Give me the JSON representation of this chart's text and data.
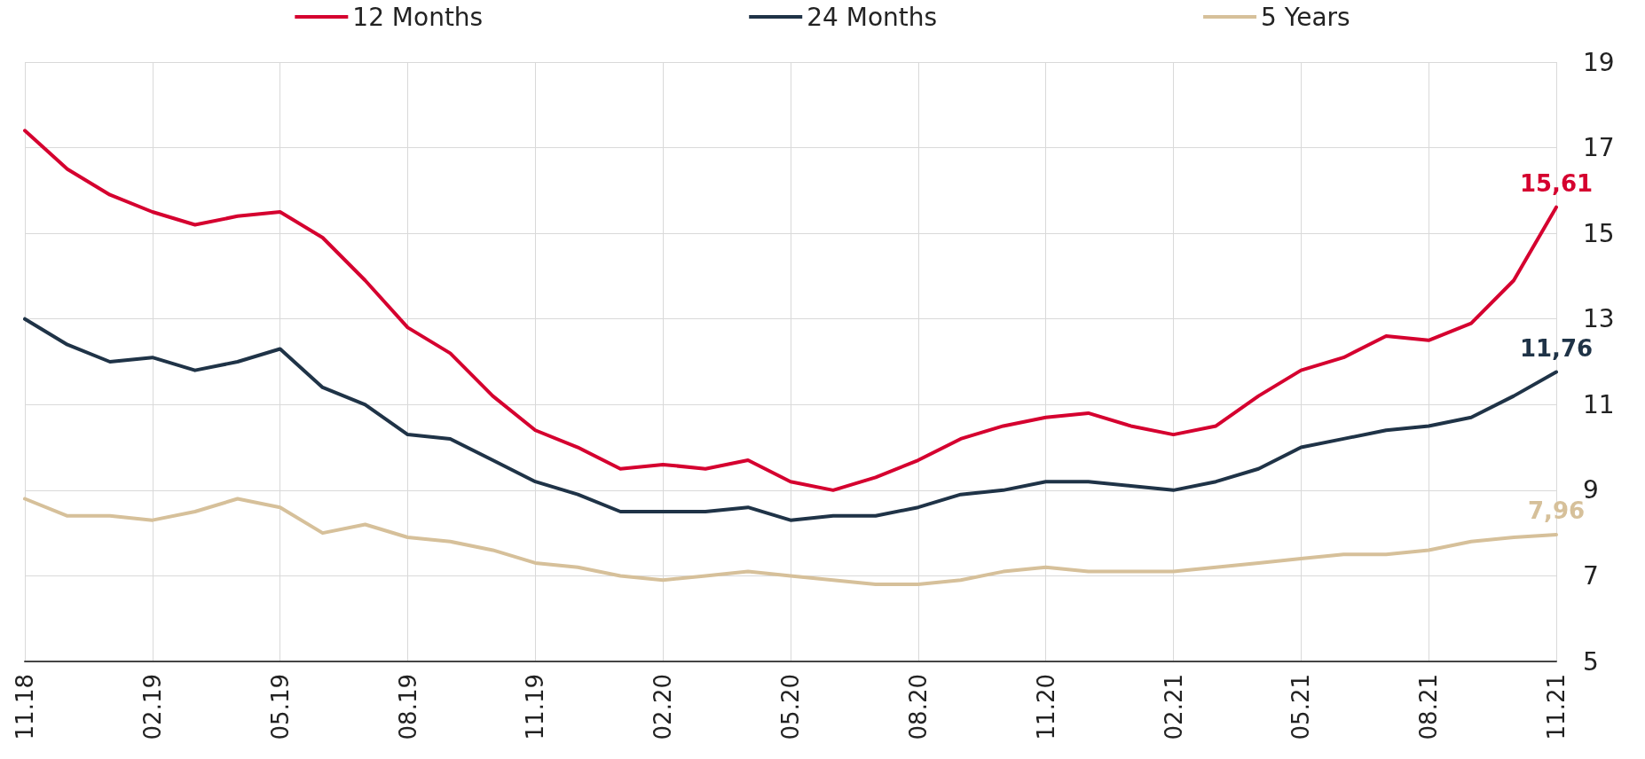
{
  "chart_data": {
    "type": "line",
    "categories": [
      "11.18",
      null,
      null,
      "02.19",
      null,
      null,
      "05.19",
      null,
      null,
      "08.19",
      null,
      null,
      "11.19",
      null,
      null,
      "02.20",
      null,
      null,
      "05.20",
      null,
      null,
      "08.20",
      null,
      null,
      "11.20",
      null,
      null,
      "02.21",
      null,
      null,
      "05.21",
      null,
      null,
      "08.21",
      null,
      null,
      "11.21"
    ],
    "series": [
      {
        "name": "12 Months",
        "color": "#d5002f",
        "values": [
          17.4,
          16.5,
          15.9,
          15.5,
          15.2,
          15.4,
          15.5,
          14.9,
          13.9,
          12.8,
          12.2,
          11.2,
          10.4,
          10.0,
          9.5,
          9.6,
          9.5,
          9.7,
          9.2,
          9.0,
          9.3,
          9.7,
          10.2,
          10.5,
          10.7,
          10.8,
          10.5,
          10.3,
          10.5,
          11.2,
          11.8,
          12.1,
          12.6,
          12.5,
          12.9,
          13.9,
          15.61
        ],
        "value_labels": [
          null,
          null,
          null,
          null,
          null,
          null,
          null,
          null,
          null,
          null,
          null,
          null,
          null,
          null,
          null,
          null,
          null,
          null,
          null,
          null,
          null,
          null,
          null,
          null,
          null,
          null,
          null,
          null,
          null,
          null,
          null,
          null,
          null,
          null,
          null,
          null,
          "15,61"
        ]
      },
      {
        "name": "24 Months",
        "color": "#1f3347",
        "values": [
          13.0,
          12.4,
          12.0,
          12.1,
          11.8,
          12.0,
          12.3,
          11.4,
          11.0,
          10.3,
          10.2,
          9.7,
          9.2,
          8.9,
          8.5,
          8.5,
          8.5,
          8.6,
          8.3,
          8.4,
          8.4,
          8.6,
          8.9,
          9.0,
          9.2,
          9.2,
          9.1,
          9.0,
          9.2,
          9.5,
          10.0,
          10.2,
          10.4,
          10.5,
          10.7,
          11.2,
          11.76
        ],
        "value_labels": [
          null,
          null,
          null,
          null,
          null,
          null,
          null,
          null,
          null,
          null,
          null,
          null,
          null,
          null,
          null,
          null,
          null,
          null,
          null,
          null,
          null,
          null,
          null,
          null,
          null,
          null,
          null,
          null,
          null,
          null,
          null,
          null,
          null,
          null,
          null,
          null,
          "11,76"
        ]
      },
      {
        "name": "5 Years",
        "color": "#d6c09a",
        "values": [
          8.8,
          8.4,
          8.4,
          8.3,
          8.5,
          8.8,
          8.6,
          8.0,
          8.2,
          7.9,
          7.8,
          7.6,
          7.3,
          7.2,
          7.0,
          6.9,
          7.0,
          7.1,
          7.0,
          6.9,
          6.8,
          6.8,
          6.9,
          7.1,
          7.2,
          7.1,
          7.1,
          7.1,
          7.2,
          7.3,
          7.4,
          7.5,
          7.5,
          7.6,
          7.8,
          7.9,
          7.96
        ],
        "value_labels": [
          null,
          null,
          null,
          null,
          null,
          null,
          null,
          null,
          null,
          null,
          null,
          null,
          null,
          null,
          null,
          null,
          null,
          null,
          null,
          null,
          null,
          null,
          null,
          null,
          null,
          null,
          null,
          null,
          null,
          null,
          null,
          null,
          null,
          null,
          null,
          null,
          "7,96"
        ]
      }
    ],
    "ylim": [
      5,
      19
    ],
    "yticks": [
      5,
      7,
      9,
      11,
      13,
      15,
      17,
      19
    ],
    "grid": true,
    "legend": "top",
    "marker": "none",
    "line_style": "solid"
  }
}
